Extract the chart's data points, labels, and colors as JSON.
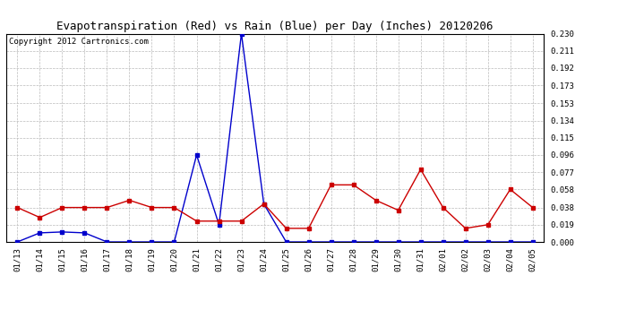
{
  "title": "Evapotranspiration (Red) vs Rain (Blue) per Day (Inches) 20120206",
  "copyright": "Copyright 2012 Cartronics.com",
  "dates": [
    "01/13",
    "01/14",
    "01/15",
    "01/16",
    "01/17",
    "01/18",
    "01/19",
    "01/20",
    "01/21",
    "01/22",
    "01/23",
    "01/24",
    "01/25",
    "01/26",
    "01/27",
    "01/28",
    "01/29",
    "01/30",
    "01/31",
    "02/01",
    "02/02",
    "02/03",
    "02/04",
    "02/05"
  ],
  "rain": [
    0.0,
    0.01,
    0.011,
    0.01,
    0.0,
    0.0,
    0.0,
    0.0,
    0.096,
    0.019,
    0.23,
    0.042,
    0.0,
    0.0,
    0.0,
    0.0,
    0.0,
    0.0,
    0.0,
    0.0,
    0.0,
    0.0,
    0.0,
    0.0
  ],
  "et": [
    0.038,
    0.027,
    0.038,
    0.038,
    0.038,
    0.046,
    0.038,
    0.038,
    0.023,
    0.023,
    0.023,
    0.042,
    0.015,
    0.015,
    0.063,
    0.063,
    0.046,
    0.035,
    0.08,
    0.038,
    0.015,
    0.019,
    0.058,
    0.038
  ],
  "ylim": [
    0.0,
    0.23
  ],
  "yticks": [
    0.0,
    0.019,
    0.038,
    0.058,
    0.077,
    0.096,
    0.115,
    0.134,
    0.153,
    0.173,
    0.192,
    0.211,
    0.23
  ],
  "rain_color": "#0000cc",
  "et_color": "#cc0000",
  "bg_color": "#ffffff",
  "grid_color": "#bbbbbb",
  "title_fontsize": 9,
  "copyright_fontsize": 6.5
}
